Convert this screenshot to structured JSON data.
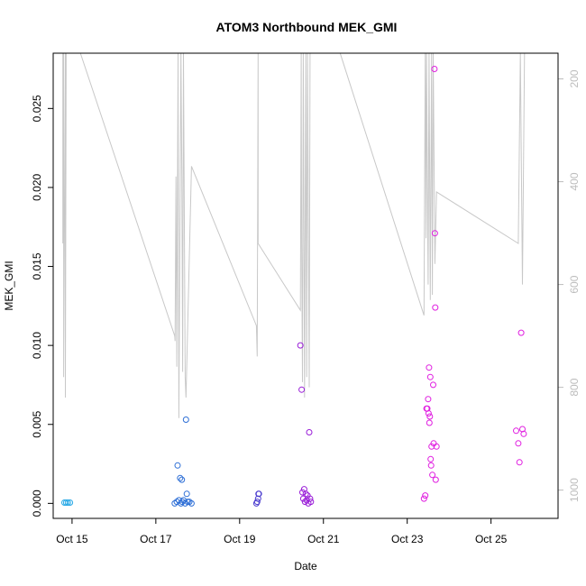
{
  "chart_data": {
    "type": "scatter",
    "title": "ATOM3 Northbound MEK_GMI",
    "xlabel": "Date",
    "ylabel": "MEK_GMI",
    "xlim": [
      14.55,
      26.6
    ],
    "ylim": [
      -0.00095,
      0.0285
    ],
    "x_ticks": [
      {
        "value": 15,
        "label": "Oct 15"
      },
      {
        "value": 17,
        "label": "Oct 17"
      },
      {
        "value": 19,
        "label": "Oct 19"
      },
      {
        "value": 21,
        "label": "Oct 21"
      },
      {
        "value": 23,
        "label": "Oct 23"
      },
      {
        "value": 25,
        "label": "Oct 25"
      }
    ],
    "y_ticks": [
      {
        "value": 0.0,
        "label": "0.000"
      },
      {
        "value": 0.005,
        "label": "0.005"
      },
      {
        "value": 0.01,
        "label": "0.010"
      },
      {
        "value": 0.015,
        "label": "0.015"
      },
      {
        "value": 0.02,
        "label": "0.020"
      },
      {
        "value": 0.025,
        "label": "0.025"
      }
    ],
    "y2_axis": {
      "reversed": true,
      "lim": [
        1055,
        150
      ],
      "ticks": [
        {
          "value": 200,
          "label": "200"
        },
        {
          "value": 400,
          "label": "400"
        },
        {
          "value": 600,
          "label": "600"
        },
        {
          "value": 800,
          "label": "800"
        },
        {
          "value": 1000,
          "label": "1000"
        }
      ],
      "color": "#bdbdbd"
    },
    "grid": false,
    "series": [
      {
        "kind": "points",
        "color": "#29a9e6",
        "points": [
          [
            14.82,
            5e-05
          ],
          [
            14.86,
            5e-05
          ],
          [
            14.9,
            5e-05
          ],
          [
            14.95,
            5e-05
          ]
        ]
      },
      {
        "kind": "points",
        "color": "#2e6fd6",
        "points": [
          [
            17.45,
            0.0
          ],
          [
            17.5,
            0.0001
          ],
          [
            17.52,
            0.0024
          ],
          [
            17.55,
            0.0002
          ],
          [
            17.58,
            0.0016
          ],
          [
            17.6,
            0.0
          ],
          [
            17.62,
            0.0015
          ],
          [
            17.63,
            0.0001
          ],
          [
            17.66,
            0.0002
          ],
          [
            17.7,
            0.0
          ],
          [
            17.72,
            0.0053
          ],
          [
            17.74,
            0.0006
          ],
          [
            17.76,
            0.0001
          ],
          [
            17.8,
            0.0001
          ],
          [
            17.85,
            0.0
          ]
        ]
      },
      {
        "kind": "points",
        "color": "#4d3fcf",
        "points": [
          [
            19.4,
            0.0
          ],
          [
            19.42,
            0.0001
          ],
          [
            19.44,
            0.0003
          ],
          [
            19.45,
            0.0006
          ],
          [
            19.46,
            0.0006
          ]
        ]
      },
      {
        "kind": "points",
        "color": "#9a1fd8",
        "points": [
          [
            20.45,
            0.01
          ],
          [
            20.48,
            0.0072
          ],
          [
            20.5,
            0.0007
          ],
          [
            20.52,
            0.0003
          ],
          [
            20.54,
            0.0009
          ],
          [
            20.56,
            0.0001
          ],
          [
            20.58,
            0.0006
          ],
          [
            20.6,
            0.0002
          ],
          [
            20.62,
            0.0005
          ],
          [
            20.64,
            0.0
          ],
          [
            20.66,
            0.0045
          ],
          [
            20.68,
            0.0003
          ],
          [
            20.7,
            0.0001
          ]
        ]
      },
      {
        "kind": "points",
        "color": "#e01ee0",
        "points": [
          [
            23.4,
            0.0003
          ],
          [
            23.43,
            0.0005
          ],
          [
            23.46,
            0.006
          ],
          [
            23.48,
            0.006
          ],
          [
            23.5,
            0.0066
          ],
          [
            23.51,
            0.0057
          ],
          [
            23.52,
            0.0086
          ],
          [
            23.53,
            0.0051
          ],
          [
            23.54,
            0.0055
          ],
          [
            23.55,
            0.008
          ],
          [
            23.56,
            0.0028
          ],
          [
            23.57,
            0.0024
          ],
          [
            23.58,
            0.0036
          ],
          [
            23.6,
            0.0018
          ],
          [
            23.62,
            0.0075
          ],
          [
            23.63,
            0.0038
          ],
          [
            23.65,
            0.0275
          ],
          [
            23.66,
            0.0171
          ],
          [
            23.67,
            0.0124
          ],
          [
            23.68,
            0.0015
          ],
          [
            23.7,
            0.0036
          ],
          [
            25.6,
            0.0046
          ],
          [
            25.65,
            0.0038
          ],
          [
            25.68,
            0.0026
          ],
          [
            25.72,
            0.0108
          ],
          [
            25.75,
            0.0047
          ],
          [
            25.78,
            0.0044
          ]
        ]
      },
      {
        "kind": "line",
        "axis": "y2",
        "color": "#c8c8c8",
        "points": [
          [
            14.78,
            150
          ],
          [
            14.78,
            520
          ],
          [
            14.8,
            150
          ],
          [
            14.8,
            780
          ],
          [
            14.84,
            150
          ],
          [
            14.84,
            820
          ],
          [
            14.86,
            150
          ],
          [
            15.2,
            150
          ],
          [
            17.45,
            700
          ],
          [
            17.46,
            710
          ],
          [
            17.48,
            390
          ],
          [
            17.5,
            760
          ],
          [
            17.53,
            150
          ],
          [
            17.55,
            860
          ],
          [
            17.6,
            150
          ],
          [
            17.62,
            390
          ],
          [
            17.64,
            770
          ],
          [
            17.66,
            150
          ],
          [
            17.7,
            780
          ],
          [
            17.72,
            820
          ],
          [
            17.85,
            370
          ],
          [
            19.4,
            680
          ],
          [
            19.42,
            740
          ],
          [
            19.44,
            150
          ],
          [
            19.44,
            520
          ],
          [
            20.45,
            650
          ],
          [
            20.47,
            150
          ],
          [
            20.48,
            520
          ],
          [
            20.5,
            790
          ],
          [
            20.52,
            150
          ],
          [
            20.55,
            820
          ],
          [
            20.58,
            150
          ],
          [
            20.6,
            780
          ],
          [
            20.62,
            150
          ],
          [
            20.66,
            800
          ],
          [
            20.68,
            150
          ],
          [
            21.4,
            150
          ],
          [
            23.4,
            660
          ],
          [
            23.43,
            150
          ],
          [
            23.45,
            510
          ],
          [
            23.46,
            150
          ],
          [
            23.5,
            600
          ],
          [
            23.52,
            150
          ],
          [
            23.55,
            630
          ],
          [
            23.58,
            150
          ],
          [
            23.6,
            620
          ],
          [
            23.62,
            150
          ],
          [
            23.66,
            560
          ],
          [
            23.7,
            420
          ],
          [
            25.65,
            520
          ],
          [
            25.7,
            150
          ],
          [
            25.75,
            600
          ],
          [
            25.8,
            150
          ]
        ]
      }
    ]
  }
}
